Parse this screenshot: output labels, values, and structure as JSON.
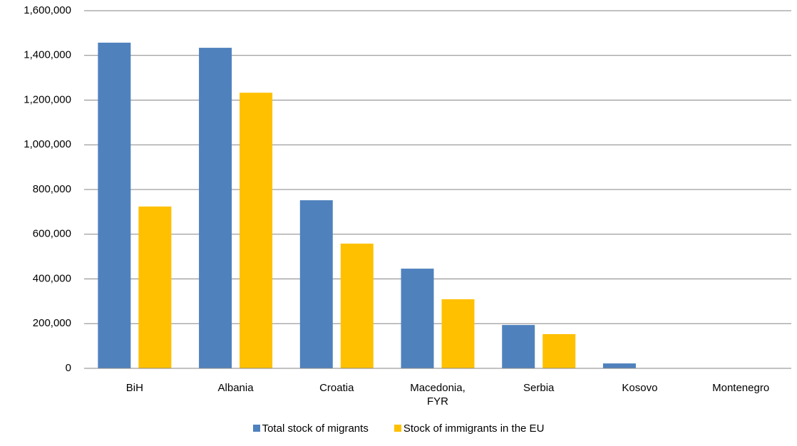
{
  "chart_data": {
    "type": "bar",
    "categories": [
      "BiH",
      "Albania",
      "Croatia",
      "Macedonia, FYR",
      "Serbia",
      "Kosovo",
      "Montenegro"
    ],
    "series": [
      {
        "name": "Total stock of migrants",
        "color": "#4f81bd",
        "values": [
          1457000,
          1434000,
          752000,
          446000,
          194000,
          22000,
          null
        ]
      },
      {
        "name": "Stock of immigrants in the EU",
        "color": "#ffc000",
        "values": [
          724000,
          1233000,
          558000,
          309000,
          153000,
          null,
          null
        ]
      }
    ],
    "ylim": [
      0,
      1600000
    ],
    "yticks": [
      {
        "value": 0,
        "label": "0"
      },
      {
        "value": 200000,
        "label": "200,000"
      },
      {
        "value": 400000,
        "label": "400,000"
      },
      {
        "value": 600000,
        "label": "600,000"
      },
      {
        "value": 800000,
        "label": "800,000"
      },
      {
        "value": 1000000,
        "label": "1,000,000"
      },
      {
        "value": 1200000,
        "label": "1,200,000"
      },
      {
        "value": 1400000,
        "label": "1,400,000"
      },
      {
        "value": 1600000,
        "label": "1,600,000"
      }
    ],
    "grid": true,
    "legend": "bottom"
  }
}
